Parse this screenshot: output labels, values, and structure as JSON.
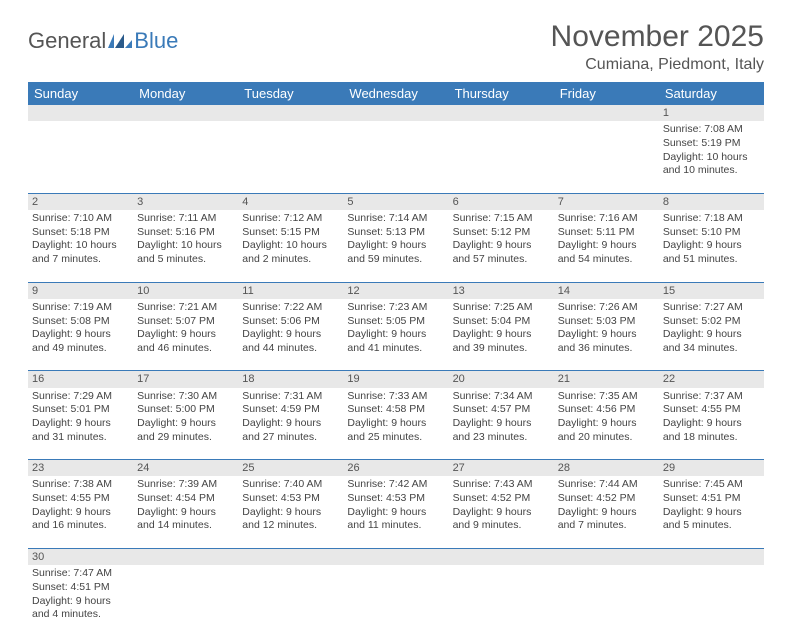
{
  "logo": {
    "text1": "General",
    "text2": "Blue"
  },
  "title": {
    "month": "November 2025",
    "location": "Cumiana, Piedmont, Italy"
  },
  "colors": {
    "header_bg": "#3a7ab8",
    "header_text": "#ffffff",
    "daynum_bg": "#e8e8e8",
    "border": "#3a7ab8"
  },
  "day_names": [
    "Sunday",
    "Monday",
    "Tuesday",
    "Wednesday",
    "Thursday",
    "Friday",
    "Saturday"
  ],
  "weeks": [
    [
      null,
      null,
      null,
      null,
      null,
      null,
      {
        "n": "1",
        "sr": "Sunrise: 7:08 AM",
        "ss": "Sunset: 5:19 PM",
        "dl": "Daylight: 10 hours and 10 minutes."
      }
    ],
    [
      {
        "n": "2",
        "sr": "Sunrise: 7:10 AM",
        "ss": "Sunset: 5:18 PM",
        "dl": "Daylight: 10 hours and 7 minutes."
      },
      {
        "n": "3",
        "sr": "Sunrise: 7:11 AM",
        "ss": "Sunset: 5:16 PM",
        "dl": "Daylight: 10 hours and 5 minutes."
      },
      {
        "n": "4",
        "sr": "Sunrise: 7:12 AM",
        "ss": "Sunset: 5:15 PM",
        "dl": "Daylight: 10 hours and 2 minutes."
      },
      {
        "n": "5",
        "sr": "Sunrise: 7:14 AM",
        "ss": "Sunset: 5:13 PM",
        "dl": "Daylight: 9 hours and 59 minutes."
      },
      {
        "n": "6",
        "sr": "Sunrise: 7:15 AM",
        "ss": "Sunset: 5:12 PM",
        "dl": "Daylight: 9 hours and 57 minutes."
      },
      {
        "n": "7",
        "sr": "Sunrise: 7:16 AM",
        "ss": "Sunset: 5:11 PM",
        "dl": "Daylight: 9 hours and 54 minutes."
      },
      {
        "n": "8",
        "sr": "Sunrise: 7:18 AM",
        "ss": "Sunset: 5:10 PM",
        "dl": "Daylight: 9 hours and 51 minutes."
      }
    ],
    [
      {
        "n": "9",
        "sr": "Sunrise: 7:19 AM",
        "ss": "Sunset: 5:08 PM",
        "dl": "Daylight: 9 hours and 49 minutes."
      },
      {
        "n": "10",
        "sr": "Sunrise: 7:21 AM",
        "ss": "Sunset: 5:07 PM",
        "dl": "Daylight: 9 hours and 46 minutes."
      },
      {
        "n": "11",
        "sr": "Sunrise: 7:22 AM",
        "ss": "Sunset: 5:06 PM",
        "dl": "Daylight: 9 hours and 44 minutes."
      },
      {
        "n": "12",
        "sr": "Sunrise: 7:23 AM",
        "ss": "Sunset: 5:05 PM",
        "dl": "Daylight: 9 hours and 41 minutes."
      },
      {
        "n": "13",
        "sr": "Sunrise: 7:25 AM",
        "ss": "Sunset: 5:04 PM",
        "dl": "Daylight: 9 hours and 39 minutes."
      },
      {
        "n": "14",
        "sr": "Sunrise: 7:26 AM",
        "ss": "Sunset: 5:03 PM",
        "dl": "Daylight: 9 hours and 36 minutes."
      },
      {
        "n": "15",
        "sr": "Sunrise: 7:27 AM",
        "ss": "Sunset: 5:02 PM",
        "dl": "Daylight: 9 hours and 34 minutes."
      }
    ],
    [
      {
        "n": "16",
        "sr": "Sunrise: 7:29 AM",
        "ss": "Sunset: 5:01 PM",
        "dl": "Daylight: 9 hours and 31 minutes."
      },
      {
        "n": "17",
        "sr": "Sunrise: 7:30 AM",
        "ss": "Sunset: 5:00 PM",
        "dl": "Daylight: 9 hours and 29 minutes."
      },
      {
        "n": "18",
        "sr": "Sunrise: 7:31 AM",
        "ss": "Sunset: 4:59 PM",
        "dl": "Daylight: 9 hours and 27 minutes."
      },
      {
        "n": "19",
        "sr": "Sunrise: 7:33 AM",
        "ss": "Sunset: 4:58 PM",
        "dl": "Daylight: 9 hours and 25 minutes."
      },
      {
        "n": "20",
        "sr": "Sunrise: 7:34 AM",
        "ss": "Sunset: 4:57 PM",
        "dl": "Daylight: 9 hours and 23 minutes."
      },
      {
        "n": "21",
        "sr": "Sunrise: 7:35 AM",
        "ss": "Sunset: 4:56 PM",
        "dl": "Daylight: 9 hours and 20 minutes."
      },
      {
        "n": "22",
        "sr": "Sunrise: 7:37 AM",
        "ss": "Sunset: 4:55 PM",
        "dl": "Daylight: 9 hours and 18 minutes."
      }
    ],
    [
      {
        "n": "23",
        "sr": "Sunrise: 7:38 AM",
        "ss": "Sunset: 4:55 PM",
        "dl": "Daylight: 9 hours and 16 minutes."
      },
      {
        "n": "24",
        "sr": "Sunrise: 7:39 AM",
        "ss": "Sunset: 4:54 PM",
        "dl": "Daylight: 9 hours and 14 minutes."
      },
      {
        "n": "25",
        "sr": "Sunrise: 7:40 AM",
        "ss": "Sunset: 4:53 PM",
        "dl": "Daylight: 9 hours and 12 minutes."
      },
      {
        "n": "26",
        "sr": "Sunrise: 7:42 AM",
        "ss": "Sunset: 4:53 PM",
        "dl": "Daylight: 9 hours and 11 minutes."
      },
      {
        "n": "27",
        "sr": "Sunrise: 7:43 AM",
        "ss": "Sunset: 4:52 PM",
        "dl": "Daylight: 9 hours and 9 minutes."
      },
      {
        "n": "28",
        "sr": "Sunrise: 7:44 AM",
        "ss": "Sunset: 4:52 PM",
        "dl": "Daylight: 9 hours and 7 minutes."
      },
      {
        "n": "29",
        "sr": "Sunrise: 7:45 AM",
        "ss": "Sunset: 4:51 PM",
        "dl": "Daylight: 9 hours and 5 minutes."
      }
    ],
    [
      {
        "n": "30",
        "sr": "Sunrise: 7:47 AM",
        "ss": "Sunset: 4:51 PM",
        "dl": "Daylight: 9 hours and 4 minutes."
      },
      null,
      null,
      null,
      null,
      null,
      null
    ]
  ]
}
